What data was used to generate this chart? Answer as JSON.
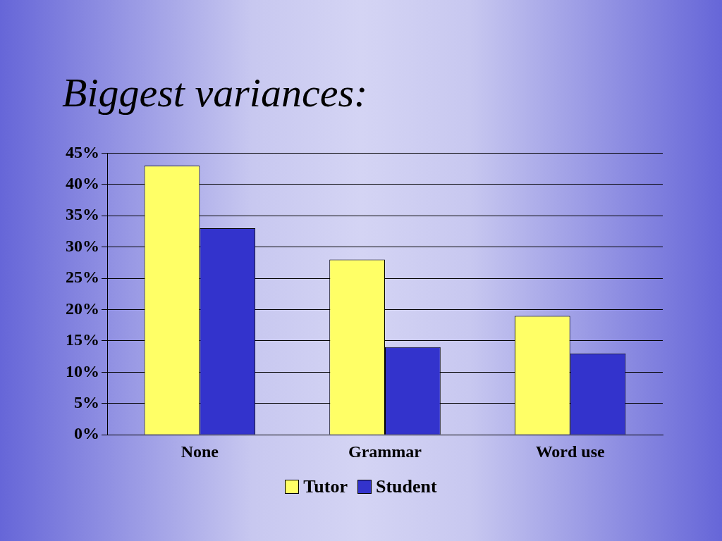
{
  "chart_data": {
    "type": "bar",
    "title": "Biggest variances:",
    "categories": [
      "None",
      "Grammar",
      "Word use"
    ],
    "series": [
      {
        "name": "Tutor",
        "color": "#ffff66",
        "values": [
          43,
          28,
          19
        ]
      },
      {
        "name": "Student",
        "color": "#3333cc",
        "values": [
          33,
          14,
          13
        ]
      }
    ],
    "ylim": [
      0,
      45
    ],
    "yticks": [
      {
        "value": 0,
        "label": "0%"
      },
      {
        "value": 5,
        "label": "5%"
      },
      {
        "value": 10,
        "label": "10%"
      },
      {
        "value": 15,
        "label": "15%"
      },
      {
        "value": 20,
        "label": "20%"
      },
      {
        "value": 25,
        "label": "25%"
      },
      {
        "value": 30,
        "label": "30%"
      },
      {
        "value": 35,
        "label": "35%"
      },
      {
        "value": 40,
        "label": "40%"
      },
      {
        "value": 45,
        "label": "45%"
      }
    ],
    "grid": "y",
    "legend": "bottom"
  }
}
